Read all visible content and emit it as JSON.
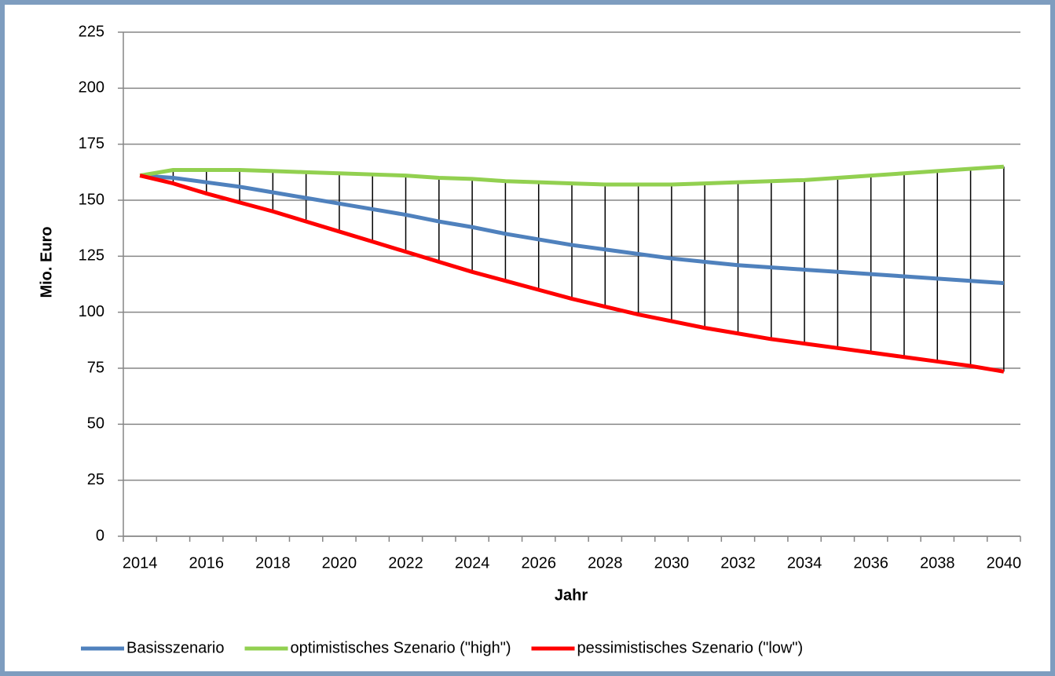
{
  "chart_data": {
    "type": "line",
    "x_label": "Jahr",
    "y_label": "Mio. Euro",
    "categories": [
      "2014",
      null,
      "2016",
      null,
      "2018",
      null,
      "2020",
      null,
      "2022",
      null,
      "2024",
      null,
      "2026",
      null,
      "2028",
      null,
      "2030",
      null,
      "2032",
      null,
      "2034",
      null,
      "2036",
      null,
      "2038",
      null,
      "2040"
    ],
    "series": [
      {
        "name": "Basisszenario",
        "color": "#4f81bd",
        "values": [
          161,
          160,
          158,
          156,
          153.5,
          151,
          148.5,
          146,
          143.5,
          140.5,
          138,
          135,
          132.5,
          130,
          128,
          126,
          124,
          122.5,
          121,
          120,
          119,
          118,
          117,
          116,
          115,
          114,
          113
        ]
      },
      {
        "name": "optimistisches Szenario (\"high\")",
        "color": "#92d050",
        "values": [
          161,
          163.5,
          163.5,
          163.5,
          163,
          162.5,
          162,
          161.5,
          161,
          160,
          159.5,
          158.5,
          158,
          157.5,
          157,
          157,
          157,
          157.5,
          158,
          158.5,
          159,
          160,
          161,
          162,
          163,
          164,
          165
        ]
      },
      {
        "name": "pessimistisches Szenario (\"low\")",
        "color": "#ff0000",
        "values": [
          161,
          157.5,
          153,
          149,
          145,
          140.5,
          136,
          131.5,
          127,
          122.5,
          118,
          114,
          110,
          106,
          102.5,
          99,
          96,
          93,
          90.5,
          88,
          86,
          84,
          82,
          80,
          78,
          76,
          73.5
        ]
      }
    ],
    "ylim": [
      0,
      225
    ],
    "yticks": [
      0,
      25,
      50,
      75,
      100,
      125,
      150,
      175,
      200,
      225
    ],
    "grid": true,
    "high_low_lines": true,
    "legend": "bottom"
  }
}
